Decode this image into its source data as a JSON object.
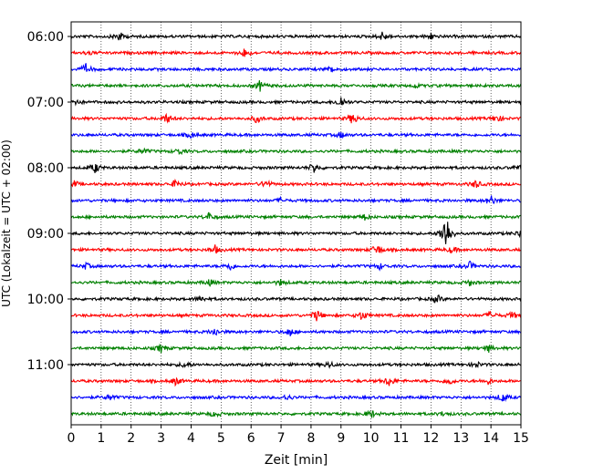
{
  "chart_data": {
    "type": "line",
    "title": "",
    "xlabel": "Zeit  [min]",
    "ylabel": "UTC (Lokalzeit = UTC + 02:00)",
    "xlim": [
      0,
      15
    ],
    "x_ticks": [
      0,
      1,
      2,
      3,
      4,
      5,
      6,
      7,
      8,
      9,
      10,
      11,
      12,
      13,
      14,
      15
    ],
    "x_tick_labels": [
      "0",
      "1",
      "2",
      "3",
      "4",
      "5",
      "6",
      "7",
      "8",
      "9",
      "10",
      "11",
      "12",
      "13",
      "14",
      "15"
    ],
    "grid": "vertical-dotted",
    "y_tick_labels": [
      "06:00",
      "07:00",
      "08:00",
      "09:00",
      "10:00",
      "11:00"
    ],
    "trace_colors": [
      "#000000",
      "#ff0000",
      "#0000ff",
      "#008000"
    ],
    "series": [
      {
        "row": 0,
        "start": "06:00",
        "color": "#000000",
        "events": [
          [
            1.6,
            0.5
          ],
          [
            10.4,
            0.5
          ],
          [
            12.0,
            0.3
          ]
        ]
      },
      {
        "row": 1,
        "start": "06:15",
        "color": "#ff0000",
        "events": [
          [
            5.8,
            0.5
          ],
          [
            0.6,
            0.2
          ]
        ]
      },
      {
        "row": 2,
        "start": "06:30",
        "color": "#0000ff",
        "events": [
          [
            0.5,
            0.5
          ],
          [
            8.7,
            0.3
          ]
        ]
      },
      {
        "row": 3,
        "start": "06:45",
        "color": "#008000",
        "events": [
          [
            6.3,
            0.5
          ],
          [
            11.5,
            0.2
          ]
        ]
      },
      {
        "row": 4,
        "start": "07:00",
        "color": "#000000",
        "events": [
          [
            0.1,
            0.5
          ],
          [
            9.0,
            0.6
          ]
        ]
      },
      {
        "row": 5,
        "start": "07:15",
        "color": "#ff0000",
        "events": [
          [
            3.2,
            0.5
          ],
          [
            6.2,
            0.4
          ],
          [
            9.4,
            0.6
          ],
          [
            14.2,
            0.4
          ]
        ]
      },
      {
        "row": 6,
        "start": "07:30",
        "color": "#0000ff",
        "events": [
          [
            4.0,
            0.3
          ],
          [
            9.0,
            0.3
          ]
        ]
      },
      {
        "row": 7,
        "start": "07:45",
        "color": "#008000",
        "events": [
          [
            2.4,
            0.3
          ],
          [
            3.6,
            0.3
          ]
        ]
      },
      {
        "row": 8,
        "start": "08:00",
        "color": "#000000",
        "events": [
          [
            0.8,
            0.5
          ],
          [
            8.1,
            0.5
          ],
          [
            14.9,
            0.2
          ]
        ]
      },
      {
        "row": 9,
        "start": "08:15",
        "color": "#ff0000",
        "events": [
          [
            0.1,
            0.3
          ],
          [
            3.5,
            0.4
          ],
          [
            6.5,
            0.4
          ],
          [
            13.5,
            0.4
          ]
        ]
      },
      {
        "row": 10,
        "start": "08:30",
        "color": "#0000ff",
        "events": [
          [
            14.0,
            0.5
          ],
          [
            7.0,
            0.2
          ]
        ]
      },
      {
        "row": 11,
        "start": "08:45",
        "color": "#008000",
        "events": [
          [
            4.6,
            0.4
          ],
          [
            9.8,
            0.3
          ]
        ]
      },
      {
        "row": 12,
        "start": "09:00",
        "color": "#000000",
        "events": [
          [
            12.5,
            2.2
          ],
          [
            15.0,
            0.4
          ]
        ]
      },
      {
        "row": 13,
        "start": "09:15",
        "color": "#ff0000",
        "events": [
          [
            4.8,
            0.4
          ],
          [
            10.2,
            0.6
          ],
          [
            12.7,
            0.3
          ]
        ]
      },
      {
        "row": 14,
        "start": "09:30",
        "color": "#0000ff",
        "events": [
          [
            0.5,
            0.3
          ],
          [
            5.3,
            0.4
          ],
          [
            10.3,
            0.3
          ],
          [
            13.3,
            0.4
          ]
        ]
      },
      {
        "row": 15,
        "start": "09:45",
        "color": "#008000",
        "events": [
          [
            4.6,
            0.3
          ],
          [
            7.0,
            0.3
          ],
          [
            13.3,
            0.3
          ]
        ]
      },
      {
        "row": 16,
        "start": "10:00",
        "color": "#000000",
        "events": [
          [
            4.3,
            0.3
          ],
          [
            12.2,
            0.4
          ]
        ]
      },
      {
        "row": 17,
        "start": "10:15",
        "color": "#ff0000",
        "events": [
          [
            8.2,
            0.6
          ],
          [
            9.7,
            0.5
          ],
          [
            14.0,
            0.4
          ],
          [
            14.7,
            0.3
          ]
        ]
      },
      {
        "row": 18,
        "start": "10:30",
        "color": "#0000ff",
        "events": [
          [
            4.8,
            0.4
          ],
          [
            7.3,
            0.4
          ]
        ]
      },
      {
        "row": 19,
        "start": "10:45",
        "color": "#008000",
        "events": [
          [
            3.0,
            0.4
          ],
          [
            13.9,
            0.4
          ]
        ]
      },
      {
        "row": 20,
        "start": "11:00",
        "color": "#000000",
        "events": [
          [
            3.8,
            0.3
          ],
          [
            8.6,
            0.3
          ],
          [
            13.5,
            0.3
          ]
        ]
      },
      {
        "row": 21,
        "start": "11:15",
        "color": "#ff0000",
        "events": [
          [
            3.5,
            0.4
          ],
          [
            10.6,
            0.5
          ],
          [
            12.6,
            0.4
          ],
          [
            13.9,
            0.3
          ]
        ]
      },
      {
        "row": 22,
        "start": "11:30",
        "color": "#0000ff",
        "events": [
          [
            1.3,
            0.3
          ],
          [
            7.2,
            0.3
          ],
          [
            14.4,
            0.5
          ]
        ]
      },
      {
        "row": 23,
        "start": "11:45",
        "color": "#008000",
        "events": [
          [
            10.0,
            0.4
          ],
          [
            4.8,
            0.3
          ],
          [
            12.4,
            0.2
          ]
        ]
      }
    ]
  }
}
